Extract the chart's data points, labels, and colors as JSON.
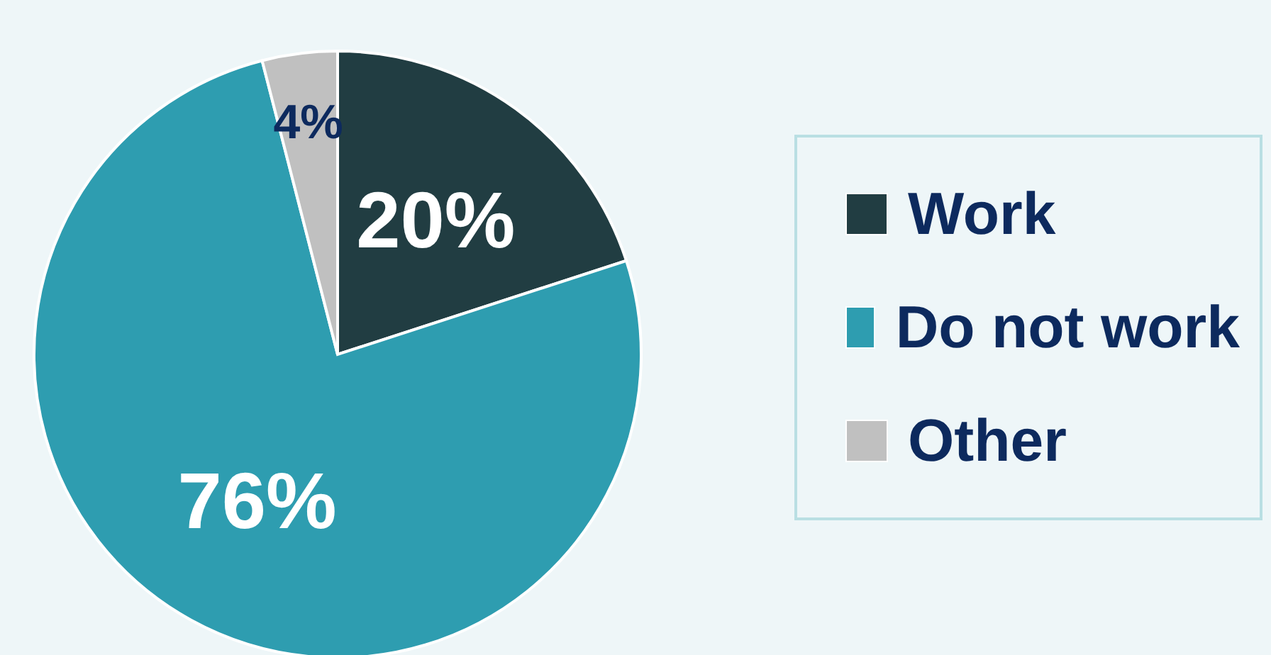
{
  "chart_data": {
    "type": "pie",
    "categories": [
      "Work",
      "Do not work",
      "Other"
    ],
    "values": [
      20,
      76,
      4
    ],
    "colors": [
      "#213d42",
      "#2e9db0",
      "#c0c0c0"
    ],
    "value_labels": [
      "20%",
      "76%",
      "4%"
    ],
    "legend": "right"
  }
}
